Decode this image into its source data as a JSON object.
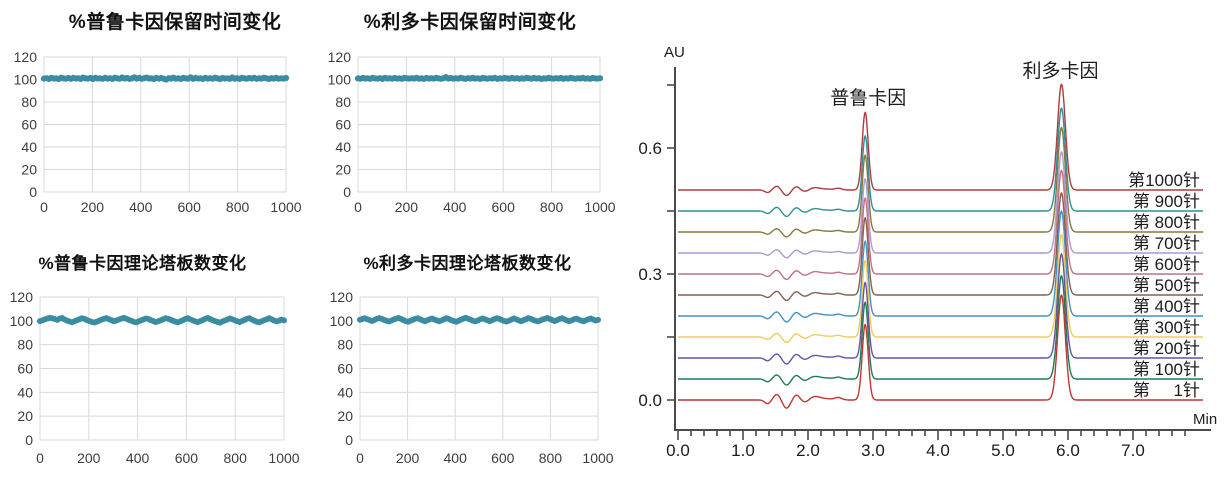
{
  "figure": {
    "background": "#ffffff"
  },
  "chart_data": [
    {
      "id": "procaine-retention",
      "type": "scatter",
      "title": "%普鲁卡因保留时间变化",
      "x_min": 0,
      "x_max": 1000,
      "x_tick_step": 200,
      "y_min": 0,
      "y_max": 120,
      "y_tick_step": 20,
      "grid": true,
      "marker_color": "#3a8ca0",
      "grid_color": "#d9d9d9",
      "tick_color": "#3d3d3d",
      "values": [
        100.8,
        101.2,
        100.5,
        101.5,
        100.9,
        101.1,
        100.4,
        101.6,
        101.0,
        100.7,
        101.3,
        100.6,
        101.4,
        100.9,
        101.2,
        100.5,
        101.7,
        101.0,
        100.8,
        101.3,
        100.4,
        101.5,
        100.9,
        101.1,
        100.6,
        101.4,
        100.8,
        101.2,
        100.5,
        101.6,
        101.0,
        100.7,
        101.8,
        100.9,
        101.3,
        100.5,
        101.1,
        102.0,
        100.8,
        101.4,
        100.6,
        101.2,
        101.7,
        100.9,
        101.0,
        100.4,
        101.5,
        100.8,
        101.3,
        100.6,
        99.9,
        101.2,
        100.9,
        101.6,
        100.7,
        101.1,
        100.5,
        101.4,
        101.0,
        100.8,
        101.9,
        100.6,
        101.3,
        100.9,
        101.1,
        100.5,
        101.5,
        100.8,
        101.2,
        100.7,
        101.6,
        101.0,
        100.4,
        101.3,
        100.9,
        101.1,
        100.6,
        101.8,
        100.8,
        101.2,
        100.5,
        101.4,
        101.0,
        100.7,
        101.3,
        100.9,
        101.5,
        100.6,
        101.1,
        100.8,
        101.6,
        101.0,
        100.5,
        101.2,
        100.9,
        101.4,
        100.7,
        101.1,
        100.8,
        101.3
      ]
    },
    {
      "id": "lidocaine-retention",
      "type": "scatter",
      "title": "%利多卡因保留时间变化",
      "x_min": 0,
      "x_max": 1000,
      "x_tick_step": 200,
      "y_min": 0,
      "y_max": 120,
      "y_tick_step": 20,
      "grid": true,
      "marker_color": "#3a8ca0",
      "grid_color": "#d9d9d9",
      "tick_color": "#3d3d3d",
      "values": [
        101.0,
        100.7,
        101.3,
        100.9,
        101.1,
        100.6,
        101.4,
        101.0,
        100.8,
        101.2,
        100.5,
        101.5,
        100.9,
        101.1,
        100.7,
        101.3,
        100.8,
        101.0,
        100.6,
        101.4,
        101.1,
        100.8,
        101.2,
        100.9,
        101.5,
        100.7,
        101.0,
        100.5,
        101.3,
        100.9,
        101.1,
        100.8,
        101.4,
        101.0,
        100.6,
        101.2,
        102.1,
        100.9,
        101.3,
        100.7,
        101.1,
        100.8,
        101.5,
        101.0,
        100.6,
        101.2,
        100.9,
        101.4,
        100.8,
        101.1,
        100.5,
        101.3,
        101.0,
        100.7,
        101.2,
        100.9,
        101.4,
        100.6,
        101.1,
        100.8,
        101.3,
        101.0,
        100.7,
        101.5,
        100.9,
        101.2,
        100.6,
        101.0,
        100.8,
        101.4,
        101.1,
        100.7,
        101.3,
        100.9,
        101.2,
        100.5,
        101.0,
        100.8,
        101.4,
        101.0,
        100.7,
        101.2,
        100.9,
        101.3,
        100.6,
        101.1,
        100.8,
        101.5,
        101.0,
        100.7,
        101.2,
        100.9,
        101.4,
        100.8,
        101.1,
        100.6,
        101.3,
        101.0,
        100.8,
        101.2
      ]
    },
    {
      "id": "procaine-plates",
      "type": "scatter",
      "title": "%普鲁卡因理论塔板数变化",
      "x_min": 0,
      "x_max": 1000,
      "x_tick_step": 200,
      "y_min": 0,
      "y_max": 120,
      "y_tick_step": 20,
      "grid": true,
      "marker_color": "#3a8ca0",
      "grid_color": "#d9d9d9",
      "tick_color": "#3d3d3d",
      "values": [
        99.8,
        100.4,
        101.2,
        102.0,
        102.6,
        102.2,
        101.5,
        100.8,
        101.9,
        102.4,
        101.1,
        100.2,
        99.4,
        98.8,
        99.6,
        100.5,
        101.3,
        102.1,
        101.6,
        100.7,
        99.9,
        99.1,
        98.6,
        99.3,
        100.2,
        101.0,
        101.8,
        102.3,
        101.4,
        100.5,
        99.7,
        100.3,
        101.1,
        101.9,
        102.5,
        101.7,
        100.9,
        100.1,
        99.2,
        98.7,
        99.5,
        100.4,
        101.2,
        102.0,
        101.5,
        100.6,
        99.8,
        99.0,
        99.6,
        100.5,
        101.4,
        102.2,
        101.8,
        100.9,
        100.0,
        99.3,
        98.8,
        99.7,
        100.6,
        101.5,
        102.1,
        101.2,
        100.4,
        99.5,
        98.9,
        99.8,
        100.7,
        101.6,
        102.4,
        101.5,
        100.6,
        99.8,
        99.1,
        98.5,
        99.4,
        100.3,
        101.1,
        102.0,
        101.3,
        100.5,
        99.6,
        99.0,
        99.9,
        100.8,
        101.7,
        102.2,
        101.0,
        100.1,
        99.3,
        98.8,
        99.7,
        100.6,
        101.4,
        102.1,
        101.2,
        100.3,
        99.5,
        100.2,
        101.0,
        100.4
      ]
    },
    {
      "id": "lidocaine-plates",
      "type": "scatter",
      "title": "%利多卡因理论塔板数变化",
      "x_min": 0,
      "x_max": 1000,
      "x_tick_step": 200,
      "y_min": 0,
      "y_max": 120,
      "y_tick_step": 20,
      "grid": true,
      "marker_color": "#3a8ca0",
      "grid_color": "#d9d9d9",
      "tick_color": "#3d3d3d",
      "values": [
        100.9,
        101.5,
        102.1,
        101.4,
        100.6,
        99.9,
        100.7,
        101.6,
        102.3,
        101.7,
        100.8,
        100.0,
        99.4,
        100.2,
        101.1,
        101.9,
        102.4,
        101.6,
        100.7,
        99.8,
        99.2,
        100.0,
        100.9,
        101.8,
        102.2,
        101.3,
        100.4,
        99.7,
        100.5,
        101.4,
        102.0,
        101.1,
        100.3,
        99.6,
        100.4,
        101.3,
        102.1,
        101.5,
        100.6,
        99.9,
        99.3,
        100.1,
        101.0,
        101.9,
        102.5,
        101.8,
        100.9,
        100.1,
        99.5,
        100.3,
        101.2,
        102.0,
        101.4,
        100.5,
        99.8,
        100.6,
        101.5,
        102.2,
        101.6,
        100.7,
        99.9,
        99.4,
        100.2,
        101.1,
        102.0,
        101.2,
        100.4,
        99.7,
        100.5,
        101.4,
        102.3,
        101.7,
        100.8,
        100.0,
        99.5,
        100.3,
        101.2,
        101.8,
        102.4,
        101.5,
        100.6,
        99.8,
        100.6,
        101.5,
        102.1,
        101.3,
        100.4,
        99.6,
        100.4,
        101.3,
        101.9,
        101.0,
        100.2,
        99.7,
        100.5,
        101.4,
        102.0,
        101.1,
        100.3,
        100.8
      ]
    },
    {
      "id": "injection-overlay-chromatogram",
      "type": "line",
      "y_axis_label": "AU",
      "x_axis_label": "Min",
      "y_labeled_ticks": [
        "0.0",
        "0.3",
        "0.6"
      ],
      "y_labeled_tick_values": [
        0,
        0.3,
        0.6
      ],
      "y_tick_step": 0.15,
      "y_tick_max": 0.75,
      "x_tick_labels": [
        "0.0",
        "1.0",
        "2.0",
        "3.0",
        "4.0",
        "5.0",
        "6.0",
        "7.0"
      ],
      "x_major_tick_step": 1.0,
      "x_minor_tick_step": 0.2,
      "x_minor_tick_max": 7.8,
      "axis_color": "#4a4a4a",
      "text_color": "#1c1c1c",
      "peak_annotations": [
        {
          "text": "普鲁卡因",
          "x_min_time": 2.88
        },
        {
          "text": "利多卡因",
          "x_min_time": 5.9
        }
      ],
      "peaks": [
        {
          "name": "普鲁卡因",
          "center_min": 2.88,
          "sigma_min": 0.046
        },
        {
          "name": "利多卡因",
          "center_min": 5.9,
          "sigma_min": 0.06
        }
      ],
      "baseline_disturbance": [
        {
          "center_min": 1.38,
          "sigma_min": 0.045,
          "amp_au": -0.006
        },
        {
          "center_min": 1.52,
          "sigma_min": 0.05,
          "amp_au": 0.009
        },
        {
          "center_min": 1.67,
          "sigma_min": 0.055,
          "amp_au": -0.013
        },
        {
          "center_min": 1.82,
          "sigma_min": 0.05,
          "amp_au": 0.008
        },
        {
          "center_min": 1.96,
          "sigma_min": 0.055,
          "amp_au": -0.004
        },
        {
          "center_min": 2.1,
          "sigma_min": 0.08,
          "amp_au": 0.005
        },
        {
          "center_min": 2.28,
          "sigma_min": 0.12,
          "amp_au": 0.002
        },
        {
          "center_min": 2.47,
          "sigma_min": 0.05,
          "amp_au": 0.0035
        }
      ],
      "traces": [
        {
          "label": "第1000针",
          "color": "#ae3b3f",
          "offset_au": 0.5,
          "peak_heights_au": [
            0.185,
            0.252
          ],
          "disturbance_scale": 1.0
        },
        {
          "label": "第 900针",
          "color": "#2e8f96",
          "offset_au": 0.45,
          "peak_heights_au": [
            0.179,
            0.245
          ],
          "disturbance_scale": 1.0
        },
        {
          "label": "第 800针",
          "color": "#85793f",
          "offset_au": 0.4,
          "peak_heights_au": [
            0.183,
            0.249
          ],
          "disturbance_scale": 0.9
        },
        {
          "label": "第 700针",
          "color": "#a89cd1",
          "offset_au": 0.35,
          "peak_heights_au": [
            0.177,
            0.241
          ],
          "disturbance_scale": 0.9
        },
        {
          "label": "第 600针",
          "color": "#c27183",
          "offset_au": 0.3,
          "peak_heights_au": [
            0.181,
            0.247
          ],
          "disturbance_scale": 1.0
        },
        {
          "label": "第 500针",
          "color": "#8a5e4b",
          "offset_au": 0.25,
          "peak_heights_au": [
            0.184,
            0.243
          ],
          "disturbance_scale": 1.0
        },
        {
          "label": "第 400针",
          "color": "#3e93c6",
          "offset_au": 0.2,
          "peak_heights_au": [
            0.178,
            0.25
          ],
          "disturbance_scale": 1.1
        },
        {
          "label": "第 300针",
          "color": "#eecd60",
          "offset_au": 0.15,
          "peak_heights_au": [
            0.182,
            0.244
          ],
          "disturbance_scale": 1.0
        },
        {
          "label": "第 200针",
          "color": "#6852a6",
          "offset_au": 0.1,
          "peak_heights_au": [
            0.18,
            0.248
          ],
          "disturbance_scale": 1.1
        },
        {
          "label": "第 100针",
          "color": "#1f7b52",
          "offset_au": 0.05,
          "peak_heights_au": [
            0.183,
            0.246
          ],
          "disturbance_scale": 1.1
        },
        {
          "label": "第     1针",
          "color": "#c23531",
          "offset_au": 0.0,
          "peak_heights_au": [
            0.18,
            0.25
          ],
          "disturbance_scale": 1.5
        }
      ]
    }
  ]
}
